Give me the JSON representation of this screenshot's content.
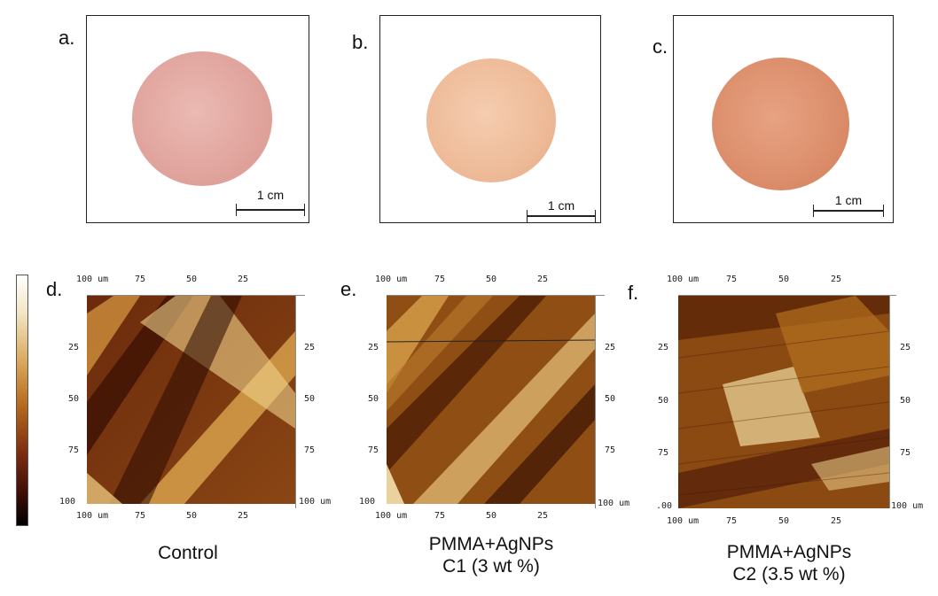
{
  "panels_top": [
    {
      "letter": "a.",
      "scale": "1 cm",
      "disc_color": "#e3a9a2"
    },
    {
      "letter": "b.",
      "scale": "1 cm",
      "disc_color": "#efbd9c"
    },
    {
      "letter": "c.",
      "scale": "1 cm",
      "disc_color": "#dd8f6c"
    }
  ],
  "panels_afm": [
    {
      "letter": "d.",
      "caption_line1": "Control",
      "caption_line2": ""
    },
    {
      "letter": "e.",
      "caption_line1": "PMMA+AgNPs",
      "caption_line2": "C1 (3 wt %)"
    },
    {
      "letter": "f.",
      "caption_line1": "PMMA+AgNPs",
      "caption_line2": "C2 (3.5 wt %)"
    }
  ],
  "afm_axis": {
    "top_ticks": [
      "100 um",
      "75",
      "50",
      "25"
    ],
    "bottom_ticks": [
      "100 um",
      "75",
      "50",
      "25"
    ],
    "left_ticks": [
      "25",
      "50",
      "75",
      "100"
    ],
    "right_ticks": [
      "25",
      "50",
      "75",
      "100 um"
    ],
    "f_left_bottom": ".00"
  }
}
